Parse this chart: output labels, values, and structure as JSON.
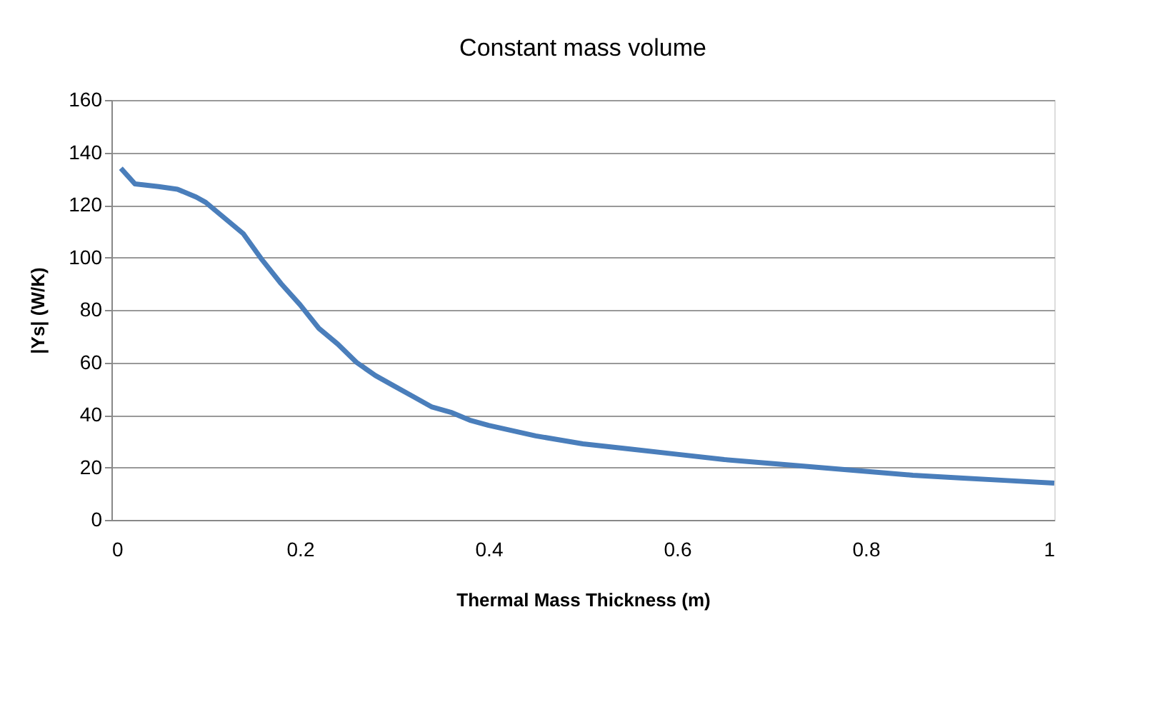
{
  "chart_data": {
    "type": "line",
    "title": "Constant mass volume",
    "xlabel": "Thermal Mass Thickness (m)",
    "ylabel": "|Ys| (W/K)",
    "x": [
      0.01,
      0.025,
      0.05,
      0.07,
      0.09,
      0.1,
      0.12,
      0.14,
      0.16,
      0.18,
      0.2,
      0.22,
      0.24,
      0.26,
      0.28,
      0.3,
      0.32,
      0.34,
      0.36,
      0.38,
      0.4,
      0.45,
      0.5,
      0.55,
      0.6,
      0.65,
      0.7,
      0.75,
      0.8,
      0.85,
      0.9,
      0.95,
      1.0
    ],
    "series": [
      {
        "color": "#4a7ebb",
        "values": [
          134,
          128,
          127,
          126,
          123,
          121,
          115,
          109,
          99,
          90,
          82,
          73,
          67,
          60,
          55,
          51,
          47,
          43,
          41,
          38,
          36,
          32,
          29,
          27,
          25,
          23,
          21.5,
          20,
          18.5,
          17,
          16,
          15,
          14
        ]
      }
    ],
    "xlim": [
      0,
      1
    ],
    "xticks": [
      0,
      0.2,
      0.4,
      0.6,
      0.8,
      1
    ],
    "ylim": [
      0,
      160
    ],
    "yticks": [
      0,
      20,
      40,
      60,
      80,
      100,
      120,
      140,
      160
    ],
    "grid": "y",
    "marker": "none",
    "line_style": "solid"
  }
}
